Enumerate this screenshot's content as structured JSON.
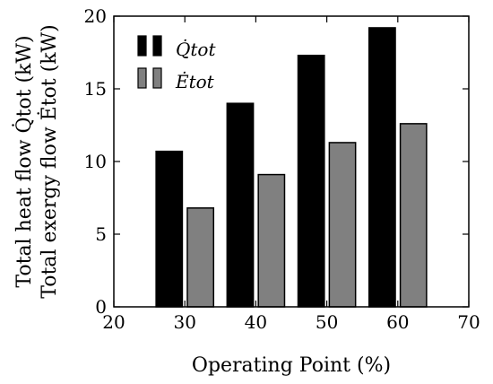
{
  "chart_data": {
    "type": "bar",
    "x": [
      30,
      40,
      50,
      60
    ],
    "series": [
      {
        "name": "Q̇tot",
        "values": [
          10.7,
          14.0,
          17.3,
          19.2
        ],
        "color": "#000000"
      },
      {
        "name": "Ėtot",
        "values": [
          6.8,
          9.1,
          11.3,
          12.6
        ],
        "color": "#808080"
      }
    ],
    "xlabel": "Operating Point (%)",
    "ylabel_lines": [
      "Total heat flow Q̇tot (kW)",
      "Total exergy flow Ėtot (kW)"
    ],
    "xlim": [
      20,
      70
    ],
    "ylim": [
      0,
      20
    ],
    "xticks": [
      20,
      30,
      40,
      50,
      60,
      70
    ],
    "yticks": [
      0,
      5,
      10,
      15,
      20
    ],
    "grid": false,
    "legend_position": "top-left"
  }
}
